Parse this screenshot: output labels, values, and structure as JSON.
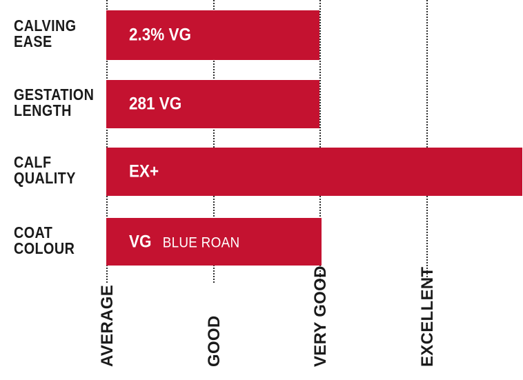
{
  "chart_data": {
    "type": "bar",
    "orientation": "horizontal",
    "categories": [
      [
        "CALVING",
        "EASE"
      ],
      [
        "GESTATION",
        "LENGTH"
      ],
      [
        "CALF",
        "QUALITY"
      ],
      [
        "COAT",
        "COLOUR"
      ]
    ],
    "values": [
      2,
      2,
      3.9,
      2.02
    ],
    "value_labels": [
      "2.3% VG",
      "281 VG",
      "EX+",
      "VG"
    ],
    "value_notes": [
      "",
      "",
      "",
      "BLUE ROAN"
    ],
    "x_ticks": [
      "AVERAGE",
      "GOOD",
      "VERY GOOD",
      "EXCELLENT"
    ],
    "x_tick_positions": [
      0,
      1,
      2,
      3
    ],
    "xlim": [
      0,
      3.9
    ],
    "grid": "vertical dotted",
    "bar_color": "#c41230",
    "legend": "none"
  }
}
